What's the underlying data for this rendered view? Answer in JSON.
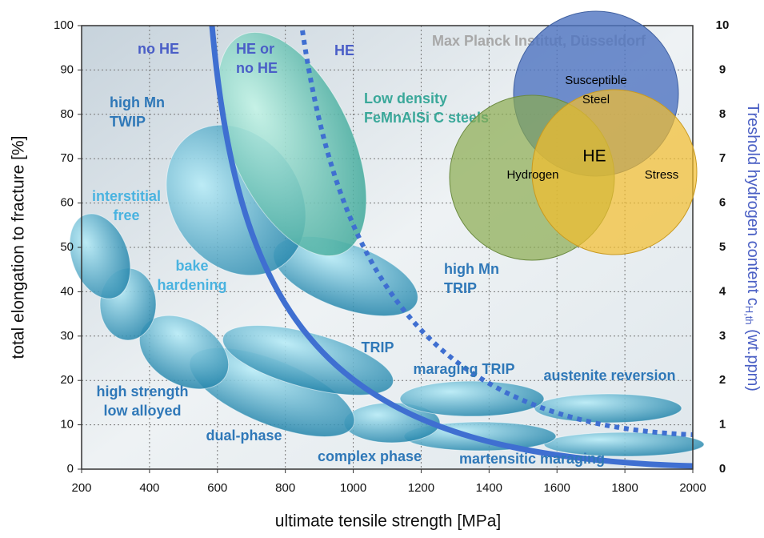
{
  "chart_data": {
    "type": "region",
    "xlabel": "ultimate tensile strength [MPa]",
    "ylabel": "total elongation to fracture [%]",
    "y2label": {
      "main": "Treshold hydrogen content c",
      "sub": "H,th",
      "unit": " (wt.ppm)"
    },
    "xlim": [
      200,
      2000
    ],
    "xticks": [
      200,
      400,
      600,
      800,
      1000,
      1200,
      1400,
      1600,
      1800,
      2000
    ],
    "ylim": [
      0,
      100
    ],
    "yticks": [
      0,
      10,
      20,
      30,
      40,
      50,
      60,
      70,
      80,
      90,
      100
    ],
    "y2lim": [
      0,
      10
    ],
    "y2ticks": [
      0,
      1,
      2,
      3,
      4,
      5,
      6,
      7,
      8,
      9,
      10
    ],
    "grid": true,
    "annotations": [
      [
        "no HE"
      ],
      [
        "HE or",
        "no HE"
      ],
      [
        "HE"
      ],
      [
        "Max Planck Institut, Düsseldorf"
      ],
      [
        "high Mn",
        "TWIP"
      ],
      [
        "Low density",
        "FeMnAlSi C steels"
      ],
      [
        "interstitial",
        "free"
      ],
      [
        "bake",
        "hardening"
      ],
      [
        "high Mn",
        "TRIP"
      ],
      [
        "TRIP"
      ],
      [
        "maraging TRIP"
      ],
      [
        "austenite reversion"
      ],
      [
        "high strength",
        "low alloyed"
      ],
      [
        "dual-phase"
      ],
      [
        "complex phase"
      ],
      [
        "martensitic maraging"
      ]
    ],
    "venn": {
      "sets": [
        [
          "Susceptible",
          "Steel"
        ],
        [
          "Hydrogen"
        ],
        [
          "Stress"
        ]
      ],
      "intersection": "HE"
    }
  }
}
